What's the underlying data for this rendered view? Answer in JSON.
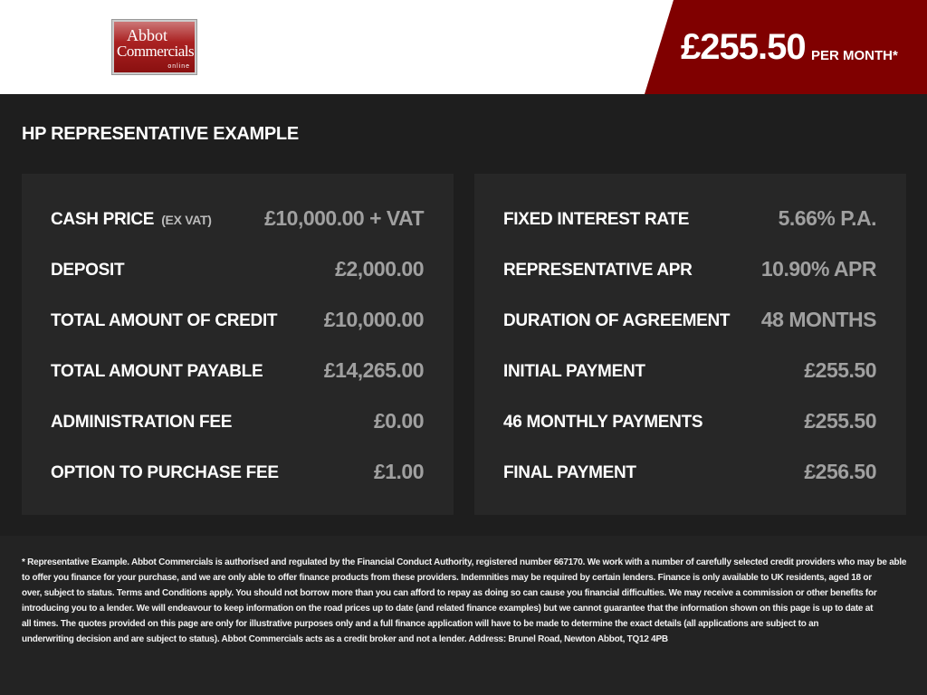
{
  "header": {
    "logo": {
      "line1": "Abbot",
      "line2": "Commercials",
      "line3": "online"
    },
    "price": "£255.50",
    "per_month": "PER MONTH*",
    "accent": "#800000"
  },
  "title": "HP REPRESENTATIVE EXAMPLE",
  "left": [
    {
      "label": "CASH PRICE",
      "note": "(EX VAT)",
      "value": "£10,000.00 + VAT"
    },
    {
      "label": "DEPOSIT",
      "value": "£2,000.00"
    },
    {
      "label": "TOTAL AMOUNT OF CREDIT",
      "value": "£10,000.00"
    },
    {
      "label": "TOTAL AMOUNT PAYABLE",
      "value": "£14,265.00"
    },
    {
      "label": "ADMINISTRATION FEE",
      "value": "£0.00"
    },
    {
      "label": "OPTION TO PURCHASE FEE",
      "value": "£1.00"
    }
  ],
  "right": [
    {
      "label": "FIXED INTEREST RATE",
      "value": "5.66% P.A."
    },
    {
      "label": "REPRESENTATIVE APR",
      "value": "10.90% APR"
    },
    {
      "label": "DURATION OF AGREEMENT",
      "value": "48 MONTHS"
    },
    {
      "label": "INITIAL PAYMENT",
      "value": "£255.50"
    },
    {
      "label": "46 MONTHLY PAYMENTS",
      "value": "£255.50"
    },
    {
      "label": "FINAL PAYMENT",
      "value": "£256.50"
    }
  ],
  "footer": [
    "* Representative Example. Abbot Commercials is authorised and regulated by the Financial Conduct Authority, registered number 667170. We work with a number of carefully selected credit providers who may be able",
    "to offer you finance for your purchase, and we are only able to offer finance products from these providers. Indemnities may be required by certain lenders. Finance is only available to UK residents, aged 18 or",
    "over, subject to status. Terms and Conditions apply. You should not borrow more than you can afford to repay as doing so can cause you financial difficulties. We may receive a commission or other benefits for",
    "introducing you to a lender. We will endeavour to keep information on the road prices up to date (and related finance examples) but we cannot guarantee that the information shown on this page is up to date at",
    "all times. The quotes provided on this page are only for illustrative purposes only and a full finance application will have to be made to determine the exact details (all applications are subject to an",
    "underwriting decision and are subject to status). Abbot Commercials acts as a credit broker and not a lender. Address: Brunel Road, Newton Abbot, TQ12 4PB"
  ]
}
